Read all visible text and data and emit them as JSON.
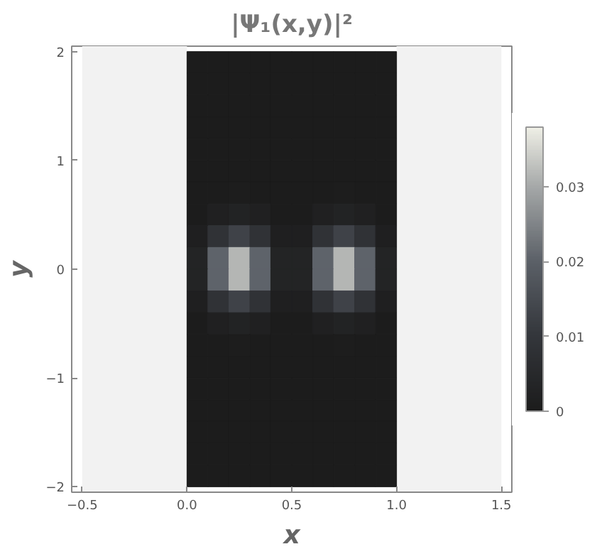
{
  "chart_data": {
    "type": "heatmap",
    "title": "|Ψ₁(x,y)|²",
    "xlabel": "x",
    "ylabel": "y",
    "x": [
      0.05,
      0.15,
      0.25,
      0.35,
      0.45,
      0.55,
      0.65,
      0.75,
      0.85,
      0.95
    ],
    "y": [
      1.9,
      1.7,
      1.5,
      1.3,
      1.1,
      0.9,
      0.7,
      0.5,
      0.3,
      0.1,
      -0.1,
      -0.3,
      -0.5,
      -0.7,
      -0.9,
      -1.1,
      -1.3,
      -1.5,
      -1.7,
      -1.9
    ],
    "cells": [
      [
        0,
        0,
        0,
        0,
        0,
        0,
        0,
        0,
        0,
        0
      ],
      [
        0,
        0,
        0,
        0,
        0,
        0,
        0,
        0,
        0,
        0
      ],
      [
        0,
        0,
        0,
        0,
        0,
        0,
        0,
        0,
        0,
        0
      ],
      [
        0,
        0,
        0,
        0,
        0,
        0,
        0,
        0,
        0,
        0
      ],
      [
        0,
        0,
        0,
        0,
        0,
        0,
        0,
        0,
        0,
        0
      ],
      [
        0,
        0,
        0,
        0,
        0,
        0,
        0,
        0,
        0,
        0
      ],
      [
        0,
        0.0002,
        0.0004,
        0.0002,
        0,
        0,
        0.0002,
        0.0004,
        0.0002,
        0
      ],
      [
        0.0002,
        0.0017,
        0.0026,
        0.0017,
        0.0002,
        0.0002,
        0.0017,
        0.0026,
        0.0017,
        0.0002
      ],
      [
        0.0012,
        0.0084,
        0.013,
        0.0084,
        0.0012,
        0.0012,
        0.0084,
        0.013,
        0.0084,
        0.0012
      ],
      [
        0.003,
        0.0204,
        0.0315,
        0.0204,
        0.003,
        0.003,
        0.0204,
        0.0315,
        0.0204,
        0.003
      ],
      [
        0.003,
        0.0204,
        0.0315,
        0.0204,
        0.003,
        0.003,
        0.0204,
        0.0315,
        0.0204,
        0.003
      ],
      [
        0.0012,
        0.0084,
        0.013,
        0.0084,
        0.0012,
        0.0012,
        0.0084,
        0.013,
        0.0084,
        0.0012
      ],
      [
        0.0002,
        0.0017,
        0.0026,
        0.0017,
        0.0002,
        0.0002,
        0.0017,
        0.0026,
        0.0017,
        0.0002
      ],
      [
        0,
        0.0002,
        0.0004,
        0.0002,
        0,
        0,
        0.0002,
        0.0004,
        0.0002,
        0
      ],
      [
        0,
        0,
        0,
        0,
        0,
        0,
        0,
        0,
        0,
        0
      ],
      [
        0,
        0,
        0,
        0,
        0,
        0,
        0,
        0,
        0,
        0
      ],
      [
        0,
        0,
        0,
        0,
        0,
        0,
        0,
        0,
        0,
        0
      ],
      [
        0,
        0,
        0,
        0,
        0,
        0,
        0,
        0,
        0,
        0
      ],
      [
        0,
        0,
        0,
        0,
        0,
        0,
        0,
        0,
        0,
        0
      ],
      [
        0,
        0,
        0,
        0,
        0,
        0,
        0,
        0,
        0,
        0
      ]
    ],
    "clim": [
      0,
      0.038
    ],
    "cticks": [
      0,
      0.01,
      0.02,
      0.03
    ],
    "xlim": [
      -0.55,
      1.55
    ],
    "ylim": [
      -2.05,
      2.05
    ],
    "xticks": [
      {
        "value": -0.5,
        "label": "−0.5"
      },
      {
        "value": 0,
        "label": "0.0"
      },
      {
        "value": 0.5,
        "label": "0.5"
      },
      {
        "value": 1,
        "label": "1.0"
      },
      {
        "value": 1.5,
        "label": "1.5"
      }
    ],
    "yticks": [
      {
        "value": -2,
        "label": "−2"
      },
      {
        "value": -1,
        "label": "−1"
      },
      0,
      1,
      2
    ],
    "bands": [
      {
        "axis": "x",
        "from": -0.5,
        "to": 0,
        "color": "#f2f2f2"
      },
      {
        "axis": "x",
        "from": 1,
        "to": 1.5,
        "color": "#f2f2f2"
      }
    ],
    "grid": false
  }
}
